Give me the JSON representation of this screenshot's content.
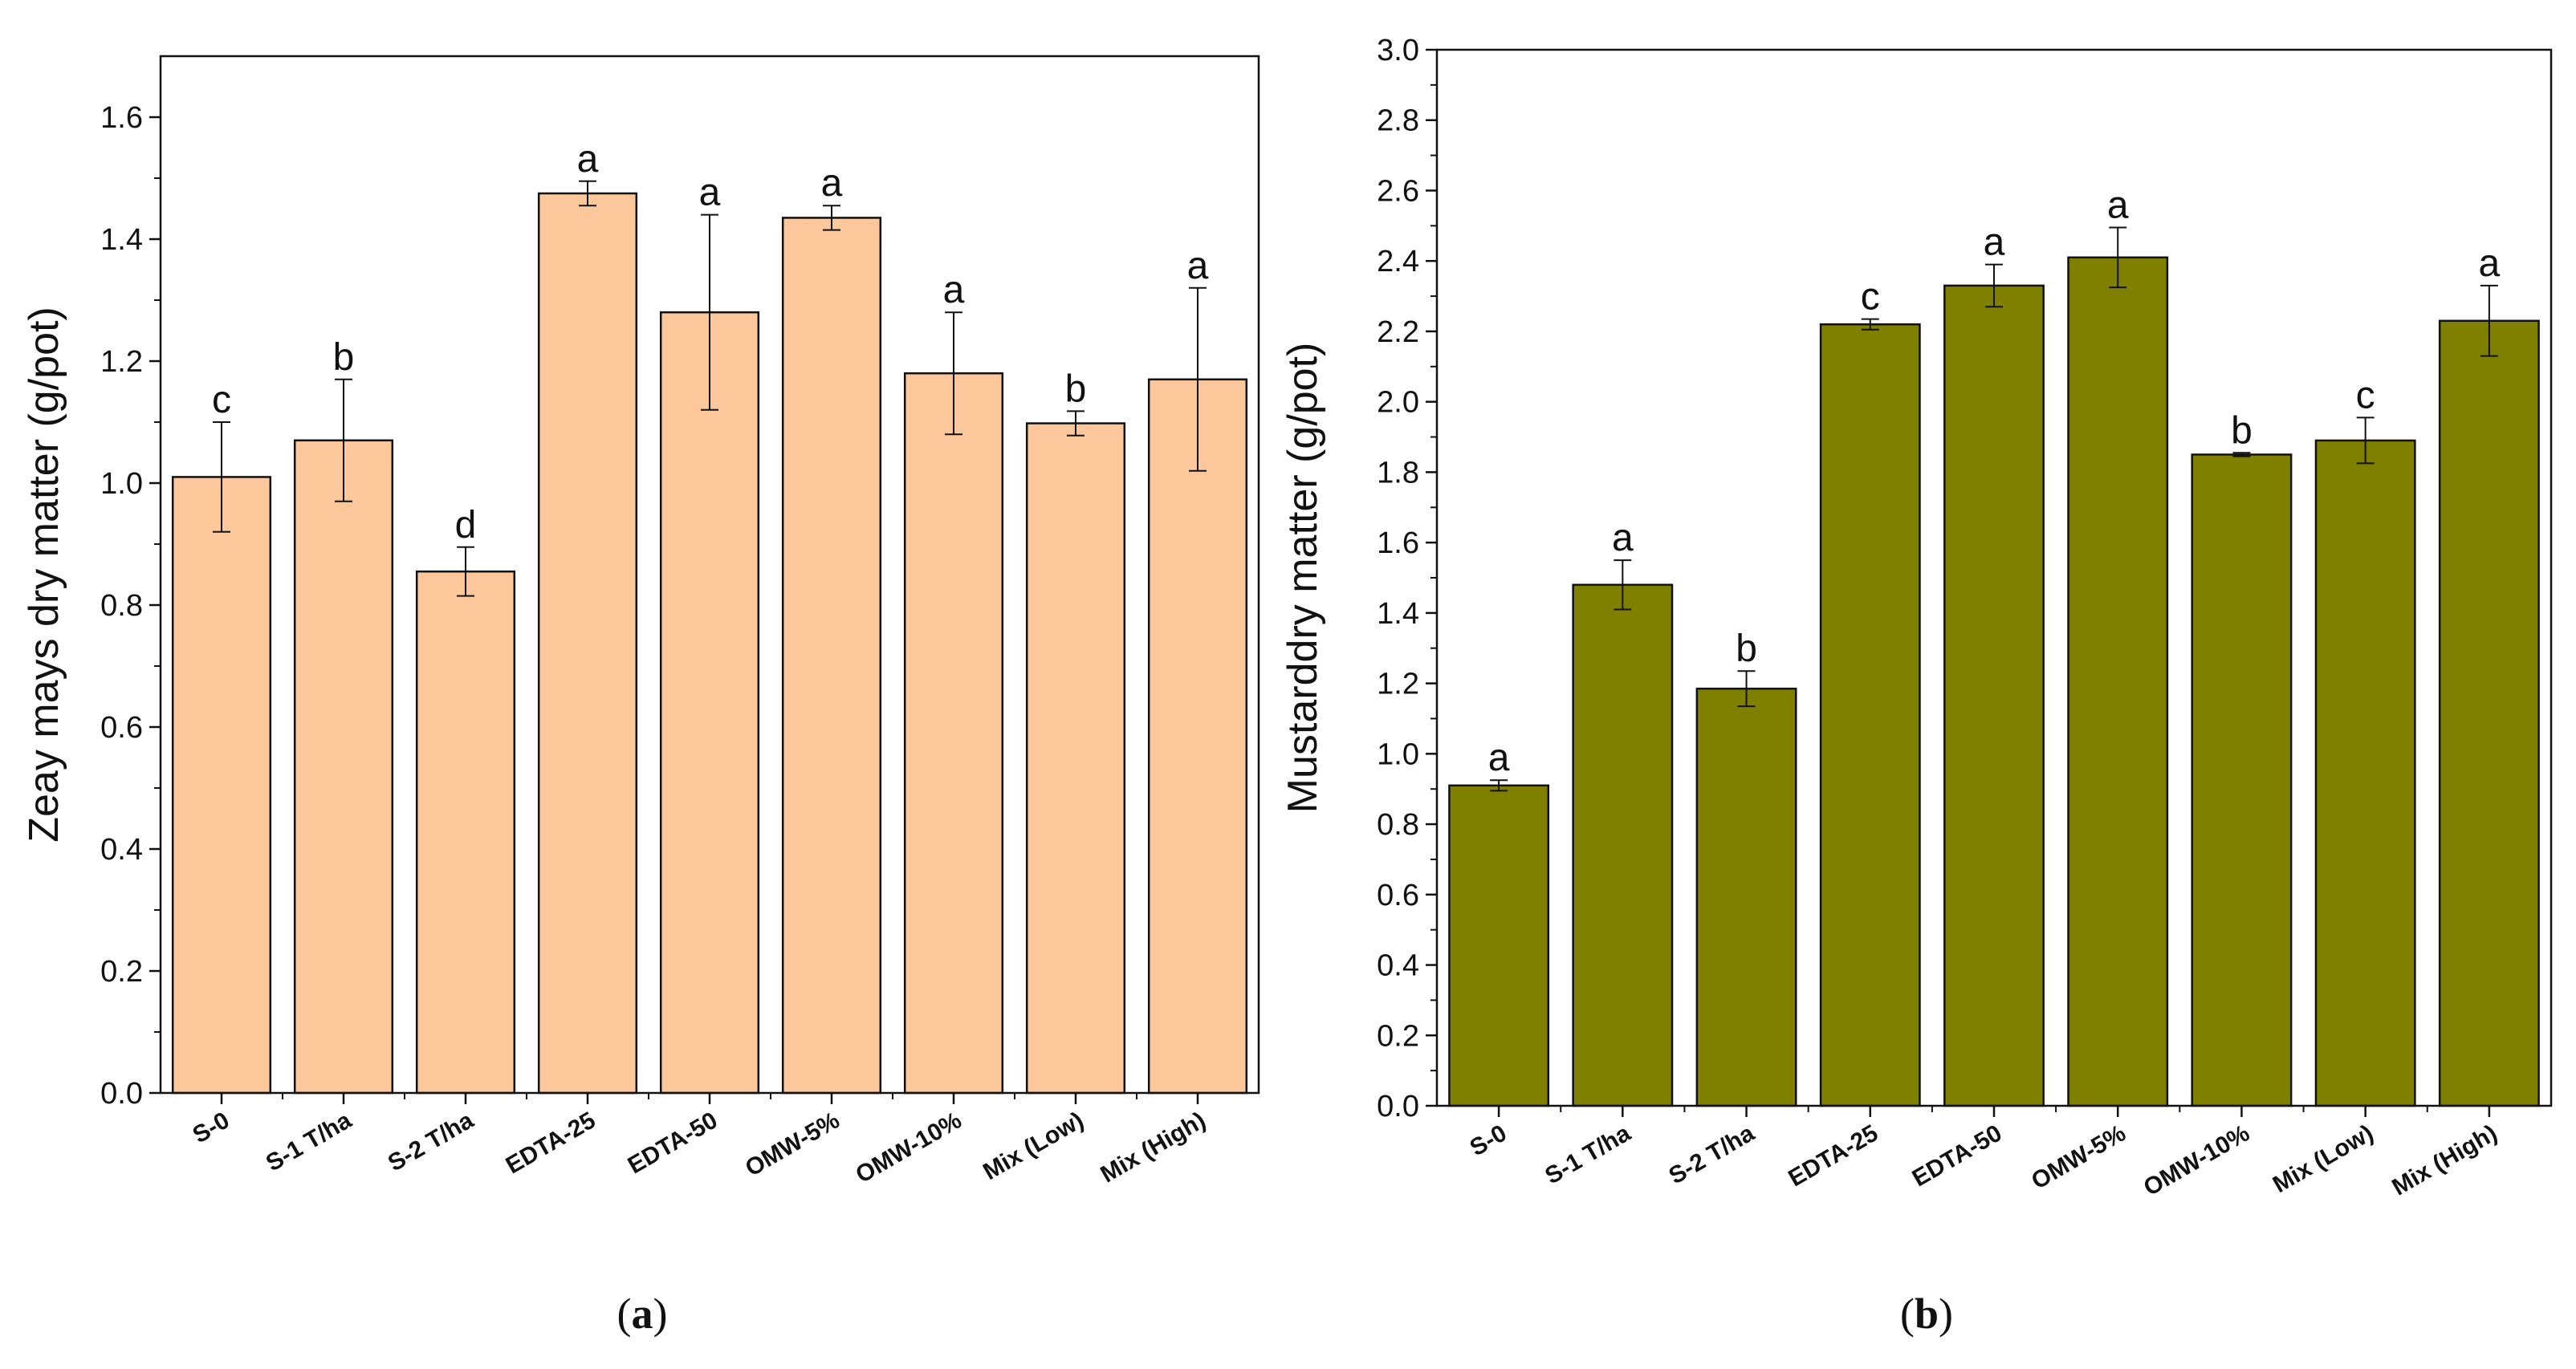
{
  "chart_data": [
    {
      "type": "bar",
      "panel_label": "(a)",
      "panel_letter": "a",
      "title": "",
      "xlabel": "",
      "ylabel": "Zeay mays dry matter (g/pot)",
      "ylim": [
        0,
        1.7
      ],
      "yticks": [
        "0.0",
        "0.2",
        "0.4",
        "0.6",
        "0.8",
        "1.0",
        "1.2",
        "1.4",
        "1.6"
      ],
      "categories": [
        "S-0",
        "S-1 T/ha",
        "S-2 T/ha",
        "EDTA-25",
        "EDTA-50",
        "OMW-5%",
        "OMW-10%",
        "Mix (Low)",
        "Mix (High)"
      ],
      "values": [
        1.01,
        1.07,
        0.855,
        1.475,
        1.28,
        1.435,
        1.18,
        1.098,
        1.17
      ],
      "errors": [
        0.09,
        0.1,
        0.04,
        0.02,
        0.16,
        0.02,
        0.1,
        0.02,
        0.15
      ],
      "significance": [
        "c",
        "b",
        "d",
        "a",
        "a",
        "a",
        "a",
        "b",
        "a"
      ],
      "bar_color": "#FCC89B",
      "grid": false
    },
    {
      "type": "bar",
      "panel_label": "(b)",
      "panel_letter": "b",
      "title": "",
      "xlabel": "",
      "ylabel": "Mustarddry matter (g/pot)",
      "ylim": [
        0,
        3.0
      ],
      "yticks": [
        "0.0",
        "0.2",
        "0.4",
        "0.6",
        "0.8",
        "1.0",
        "1.2",
        "1.4",
        "1.6",
        "1.8",
        "2.0",
        "2.2",
        "2.4",
        "2.6",
        "2.8",
        "3.0"
      ],
      "categories": [
        "S-0",
        "S-1 T/ha",
        "S-2 T/ha",
        "EDTA-25",
        "EDTA-50",
        "OMW-5%",
        "OMW-10%",
        "Mix (Low)",
        "Mix (High)"
      ],
      "values": [
        0.91,
        1.48,
        1.185,
        2.22,
        2.33,
        2.41,
        1.85,
        1.89,
        2.23
      ],
      "errors": [
        0.015,
        0.07,
        0.05,
        0.015,
        0.06,
        0.085,
        0.005,
        0.065,
        0.1
      ],
      "significance": [
        "a",
        "a",
        "b",
        "c",
        "a",
        "a",
        "b",
        "c",
        "a"
      ],
      "bar_color": "#808000",
      "grid": false
    }
  ]
}
